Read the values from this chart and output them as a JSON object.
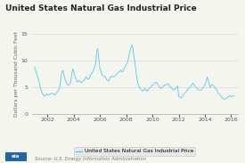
{
  "title": "United States Natural Gas Industrial Price",
  "ylabel": "Dollars per Thousand Cubic Feet",
  "ylim": [
    0,
    15
  ],
  "yticks": [
    0,
    5,
    10,
    15
  ],
  "xticks": [
    2002,
    2004,
    2006,
    2008,
    2010,
    2012,
    2014,
    2016
  ],
  "xlim": [
    2000.8,
    2016.5
  ],
  "legend_label": "United States Natural Gas Industrial Price",
  "source": "Source: U.S. Energy Information Administration",
  "line_color": "#5bc8e8",
  "background_color": "#f5f5f0",
  "plot_bg_color": "#f5f5f0",
  "title_fontsize": 6.5,
  "ylabel_fontsize": 4.2,
  "tick_fontsize": 4.5,
  "legend_fontsize": 4.2,
  "source_fontsize": 3.8,
  "x": [
    2001.0,
    2001.08,
    2001.17,
    2001.25,
    2001.33,
    2001.42,
    2001.5,
    2001.58,
    2001.67,
    2001.75,
    2001.83,
    2001.92,
    2002.0,
    2002.08,
    2002.17,
    2002.25,
    2002.33,
    2002.42,
    2002.5,
    2002.58,
    2002.67,
    2002.75,
    2002.83,
    2002.92,
    2003.0,
    2003.08,
    2003.17,
    2003.25,
    2003.33,
    2003.42,
    2003.5,
    2003.58,
    2003.67,
    2003.75,
    2003.83,
    2003.92,
    2004.0,
    2004.08,
    2004.17,
    2004.25,
    2004.33,
    2004.42,
    2004.5,
    2004.58,
    2004.67,
    2004.75,
    2004.83,
    2004.92,
    2005.0,
    2005.08,
    2005.17,
    2005.25,
    2005.33,
    2005.42,
    2005.5,
    2005.58,
    2005.67,
    2005.75,
    2005.83,
    2005.92,
    2006.0,
    2006.08,
    2006.17,
    2006.25,
    2006.33,
    2006.42,
    2006.5,
    2006.58,
    2006.67,
    2006.75,
    2006.83,
    2006.92,
    2007.0,
    2007.08,
    2007.17,
    2007.25,
    2007.33,
    2007.42,
    2007.5,
    2007.58,
    2007.67,
    2007.75,
    2007.83,
    2007.92,
    2008.0,
    2008.08,
    2008.17,
    2008.25,
    2008.33,
    2008.42,
    2008.5,
    2008.58,
    2008.67,
    2008.75,
    2008.83,
    2008.92,
    2009.0,
    2009.08,
    2009.17,
    2009.25,
    2009.33,
    2009.42,
    2009.5,
    2009.58,
    2009.67,
    2009.75,
    2009.83,
    2009.92,
    2010.0,
    2010.08,
    2010.17,
    2010.25,
    2010.33,
    2010.42,
    2010.5,
    2010.58,
    2010.67,
    2010.75,
    2010.83,
    2010.92,
    2011.0,
    2011.08,
    2011.17,
    2011.25,
    2011.33,
    2011.42,
    2011.5,
    2011.58,
    2011.67,
    2011.75,
    2011.83,
    2011.92,
    2012.0,
    2012.08,
    2012.17,
    2012.25,
    2012.33,
    2012.42,
    2012.5,
    2012.58,
    2012.67,
    2012.75,
    2012.83,
    2012.92,
    2013.0,
    2013.08,
    2013.17,
    2013.25,
    2013.33,
    2013.42,
    2013.5,
    2013.58,
    2013.67,
    2013.75,
    2013.83,
    2013.92,
    2014.0,
    2014.08,
    2014.17,
    2014.25,
    2014.33,
    2014.42,
    2014.5,
    2014.58,
    2014.67,
    2014.75,
    2014.83,
    2014.92,
    2015.0,
    2015.08,
    2015.17,
    2015.25,
    2015.33,
    2015.42,
    2015.5,
    2015.58,
    2015.67,
    2015.75,
    2015.83,
    2015.92,
    2016.0,
    2016.08,
    2016.17,
    2016.25
  ],
  "y": [
    8.9,
    8.2,
    7.5,
    7.0,
    6.3,
    5.3,
    4.5,
    4.0,
    3.6,
    3.4,
    3.5,
    3.8,
    3.7,
    3.6,
    3.7,
    3.9,
    3.8,
    3.9,
    3.7,
    3.6,
    4.0,
    4.2,
    4.4,
    5.0,
    6.5,
    7.8,
    8.2,
    7.4,
    6.5,
    6.0,
    5.5,
    5.4,
    5.6,
    5.8,
    7.2,
    8.5,
    8.0,
    7.2,
    6.5,
    6.0,
    6.2,
    6.3,
    6.0,
    5.9,
    6.1,
    6.3,
    6.5,
    7.0,
    6.8,
    6.5,
    6.7,
    7.2,
    7.6,
    7.8,
    8.3,
    8.8,
    9.5,
    11.8,
    12.3,
    10.0,
    8.5,
    8.0,
    7.3,
    7.2,
    7.0,
    7.0,
    6.5,
    6.3,
    6.2,
    6.8,
    7.0,
    7.2,
    7.0,
    7.0,
    7.3,
    7.5,
    7.6,
    7.9,
    8.0,
    8.3,
    7.9,
    8.0,
    8.5,
    8.9,
    9.3,
    9.6,
    10.5,
    11.5,
    12.3,
    13.0,
    12.5,
    11.0,
    9.5,
    8.0,
    6.5,
    5.5,
    5.0,
    4.7,
    4.5,
    4.3,
    4.5,
    4.8,
    4.5,
    4.3,
    4.6,
    4.8,
    5.0,
    5.2,
    5.5,
    5.5,
    5.8,
    6.0,
    5.9,
    5.5,
    5.2,
    5.0,
    4.8,
    5.0,
    5.2,
    5.5,
    5.5,
    5.5,
    5.7,
    5.5,
    5.2,
    5.0,
    4.8,
    4.6,
    4.5,
    4.8,
    5.0,
    5.3,
    3.3,
    3.2,
    3.0,
    3.2,
    3.5,
    3.8,
    4.0,
    4.2,
    4.5,
    4.8,
    5.0,
    5.2,
    5.5,
    5.8,
    5.5,
    5.3,
    5.0,
    4.8,
    4.6,
    4.5,
    4.5,
    4.6,
    4.8,
    5.2,
    5.5,
    6.0,
    7.0,
    6.5,
    5.5,
    5.0,
    5.5,
    5.5,
    5.3,
    5.0,
    4.8,
    4.5,
    4.0,
    3.8,
    3.5,
    3.3,
    3.0,
    2.9,
    2.8,
    2.9,
    3.0,
    3.2,
    3.3,
    3.5,
    3.3,
    3.3,
    3.4,
    3.5
  ]
}
